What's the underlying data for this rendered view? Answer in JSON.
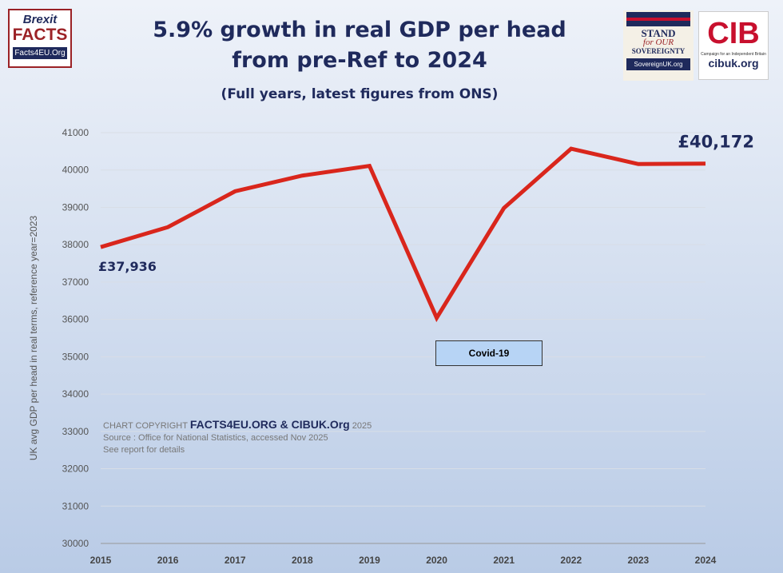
{
  "title_line1": "5.9% growth in real GDP per head",
  "title_line2": "from pre-Ref to 2024",
  "subtitle": "(Full years, latest figures from ONS)",
  "logos": {
    "brexit_facts": {
      "line1": "Brexit",
      "line2": "FACTS",
      "line3": "Facts4EU.Org"
    },
    "sovereignty": {
      "line1": "STAND",
      "line2": "for OUR",
      "line3": "SOVEREIGNTY",
      "line4": "SovereignUK.org"
    },
    "cib": {
      "mark": "CIB",
      "small": "Campaign for an Independent Britain",
      "url": "cibuk.org"
    }
  },
  "annotation_covid": "Covid-19",
  "copyright": {
    "prefix": "CHART COPYRIGHT",
    "owners": "FACTS4EU.ORG & CIBUK.Org",
    "year": "2025",
    "source": "Source : Office for National Statistics, accessed Nov 2025",
    "note": "See report for details"
  },
  "chart_data": {
    "type": "line",
    "title": "5.9% growth in real GDP per head from pre-Ref to 2024",
    "ylabel": "UK avg GDP per head in real terms, reference year=2023",
    "xlabel": "",
    "categories": [
      "2015",
      "2016",
      "2017",
      "2018",
      "2019",
      "2020",
      "2021",
      "2022",
      "2023",
      "2024"
    ],
    "values": [
      37936,
      38470,
      39430,
      39850,
      40110,
      36040,
      38980,
      40570,
      40160,
      40172
    ],
    "ylim": [
      30000,
      41000
    ],
    "yticks": [
      "30000",
      "31000",
      "32000",
      "33000",
      "34000",
      "35000",
      "36000",
      "37000",
      "38000",
      "39000",
      "40000",
      "41000"
    ],
    "grid": true,
    "line_color": "#d9261c",
    "data_labels": {
      "first": "£37,936",
      "last": "£40,172"
    }
  }
}
